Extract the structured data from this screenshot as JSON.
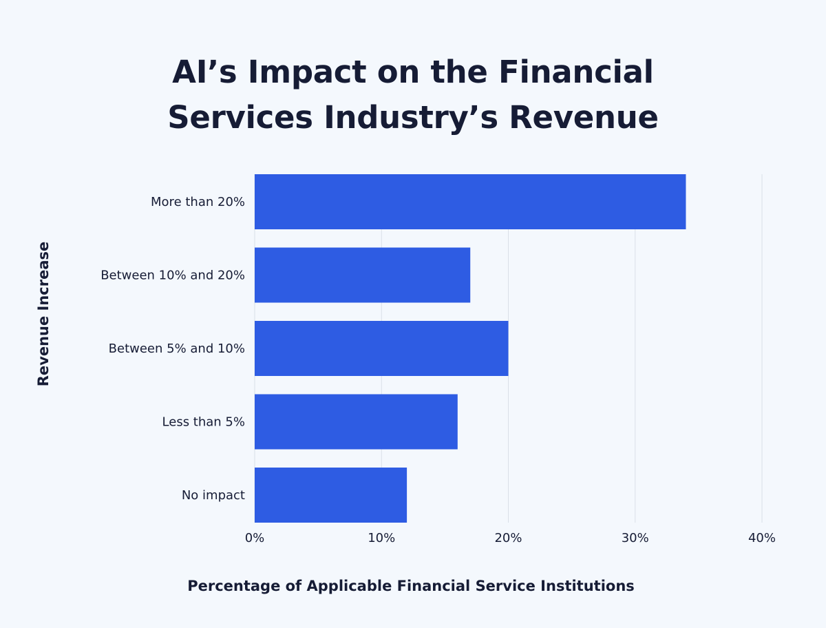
{
  "chart_data": {
    "type": "bar",
    "orientation": "horizontal",
    "title_lines": [
      "AI’s Impact on the Financial",
      "Services Industry’s Revenue"
    ],
    "categories": [
      "More than 20%",
      "Between 10% and 20%",
      "Between 5% and 10%",
      "Less than 5%",
      "No impact"
    ],
    "values": [
      34,
      17,
      20,
      16,
      12
    ],
    "xlabel": "Percentage of Applicable Financial Service Institutions",
    "ylabel": "Revenue Increase",
    "xlim": [
      0,
      40
    ],
    "xticks": [
      0,
      10,
      20,
      30,
      40
    ],
    "xtick_labels": [
      "0%",
      "10%",
      "20%",
      "30%",
      "40%"
    ],
    "grid": "vertical",
    "bar_color": "#2e5ce3",
    "grid_color": "#d9dfe8"
  }
}
